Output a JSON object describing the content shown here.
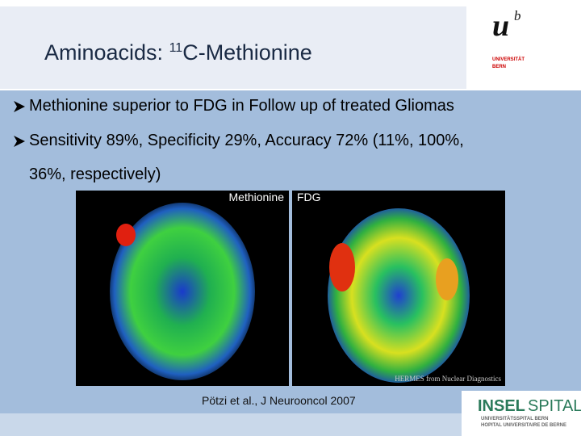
{
  "header": {
    "title_prefix": "Aminoacids:",
    "title_superscript": "11",
    "title_suffix": "C-Methionine"
  },
  "bullets": [
    "Methionine superior to FDG in Follow up of treated Gliomas",
    "Sensitivity 89%, Specificity 29%, Accuracy 72% (11%, 100%,",
    "36%, respectively)"
  ],
  "images": [
    {
      "label": "Methionine"
    },
    {
      "label": "FDG",
      "watermark": "HERMES from Nuclear Diagnostics"
    }
  ],
  "citation": "Pötzi et al., J Neurooncol 2007",
  "logos": {
    "university": {
      "mark": "u",
      "superscript": "b",
      "line1": "UNIVERSITÄT",
      "line2": "BERN"
    },
    "hospital": {
      "name_part1": "INSEL",
      "name_part2": "SPITAL",
      "line1": "UNIVERSITÄTSSPITAL BERN",
      "line2": "HOPITAL UNIVERSITAIRE DE BERNE"
    }
  }
}
